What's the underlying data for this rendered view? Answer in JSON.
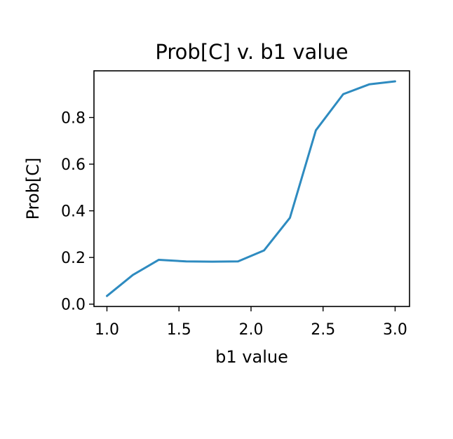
{
  "chart_data": {
    "type": "line",
    "title": "Prob[C] v. b1 value",
    "xlabel": "b1 value",
    "ylabel": "Prob[C]",
    "xlim": [
      0.91,
      3.1
    ],
    "ylim": [
      -0.01,
      1.0
    ],
    "x_ticks": [
      1.0,
      1.5,
      2.0,
      2.5,
      3.0
    ],
    "x_tick_labels": [
      "1.0",
      "1.5",
      "2.0",
      "2.5",
      "3.0"
    ],
    "y_ticks": [
      0.0,
      0.2,
      0.4,
      0.6,
      0.8
    ],
    "y_tick_labels": [
      "0.0",
      "0.2",
      "0.4",
      "0.6",
      "0.8"
    ],
    "grid": false,
    "legend": "none",
    "series": [
      {
        "x": [
          1.0,
          1.18,
          1.36,
          1.55,
          1.73,
          1.91,
          2.09,
          2.27,
          2.45,
          2.64,
          2.82,
          3.0
        ],
        "y": [
          0.035,
          0.125,
          0.19,
          0.183,
          0.182,
          0.183,
          0.23,
          0.37,
          0.745,
          0.9,
          0.942,
          0.955
        ],
        "color": "#2e8bc0"
      }
    ]
  }
}
